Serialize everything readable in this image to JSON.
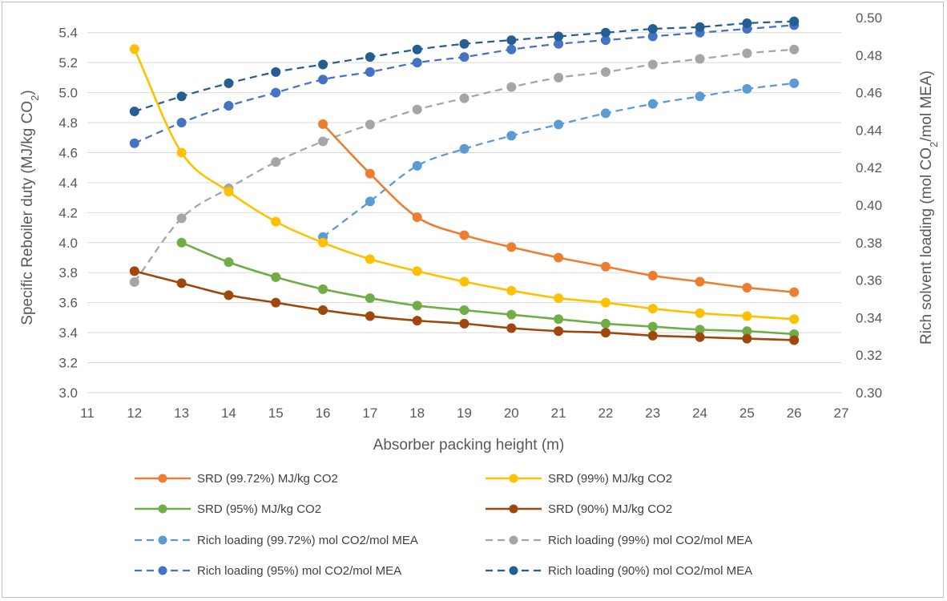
{
  "chart_data": {
    "type": "line",
    "title": "",
    "xlabel": "Absorber packing height (m)",
    "ylabel_left": {
      "text": "Specific Reboiler duty (MJ/kg CO",
      "sub": "2",
      "end": ")"
    },
    "ylabel_right": {
      "text": "Rich solvent loading (mol CO",
      "sub": "2",
      "end": "/mol MEA)"
    },
    "xlim": [
      11,
      27
    ],
    "ylim_left": [
      3.0,
      5.5
    ],
    "ylim_right": [
      0.3,
      0.5
    ],
    "x_ticks": [
      "11",
      "12",
      "13",
      "14",
      "15",
      "16",
      "17",
      "18",
      "19",
      "20",
      "21",
      "22",
      "23",
      "24",
      "25",
      "26",
      "27"
    ],
    "y_left_ticks": [
      "3.0",
      "3.2",
      "3.4",
      "3.6",
      "3.8",
      "4.0",
      "4.2",
      "4.4",
      "4.6",
      "4.8",
      "5.0",
      "5.2",
      "5.4"
    ],
    "y_right_ticks": [
      "0.30",
      "0.32",
      "0.34",
      "0.36",
      "0.38",
      "0.40",
      "0.42",
      "0.44",
      "0.46",
      "0.48",
      "0.50"
    ],
    "grid": "horizontal",
    "legend_position": "bottom",
    "series": [
      {
        "name": "SRD (99.72%) MJ/kg CO2",
        "axis": "left",
        "dashed": false,
        "color": "#ED7D31",
        "x": [
          16,
          17,
          18,
          19,
          20,
          21,
          22,
          23,
          24,
          25,
          26
        ],
        "y": [
          4.79,
          4.46,
          4.17,
          4.05,
          3.97,
          3.9,
          3.84,
          3.78,
          3.74,
          3.7,
          3.67
        ]
      },
      {
        "name": "SRD (99%) MJ/kg CO2",
        "axis": "left",
        "dashed": false,
        "color": "#FFC000",
        "x": [
          12,
          13,
          14,
          15,
          16,
          17,
          18,
          19,
          20,
          21,
          22,
          23,
          24,
          25,
          26
        ],
        "y": [
          5.29,
          4.6,
          4.34,
          4.14,
          4.0,
          3.89,
          3.81,
          3.74,
          3.68,
          3.63,
          3.6,
          3.56,
          3.53,
          3.51,
          3.49
        ]
      },
      {
        "name": "SRD (95%) MJ/kg CO2",
        "axis": "left",
        "dashed": false,
        "color": "#70AD47",
        "x": [
          13,
          14,
          15,
          16,
          17,
          18,
          19,
          20,
          21,
          22,
          23,
          24,
          25,
          26
        ],
        "y": [
          4.0,
          3.87,
          3.77,
          3.69,
          3.63,
          3.58,
          3.55,
          3.52,
          3.49,
          3.46,
          3.44,
          3.42,
          3.41,
          3.39
        ]
      },
      {
        "name": "SRD (90%) MJ/kg CO2",
        "axis": "left",
        "dashed": false,
        "color": "#9E480E",
        "x": [
          12,
          13,
          14,
          15,
          16,
          17,
          18,
          19,
          20,
          21,
          22,
          23,
          24,
          25,
          26
        ],
        "y": [
          3.81,
          3.73,
          3.65,
          3.6,
          3.55,
          3.51,
          3.48,
          3.46,
          3.43,
          3.41,
          3.4,
          3.38,
          3.37,
          3.36,
          3.35
        ]
      },
      {
        "name": "Rich loading (99.72%) mol CO2/mol MEA",
        "axis": "right",
        "dashed": true,
        "color": "#5B9BD5",
        "x": [
          16,
          17,
          18,
          19,
          20,
          21,
          22,
          23,
          24,
          25,
          26
        ],
        "y": [
          0.383,
          0.402,
          0.421,
          0.43,
          0.437,
          0.443,
          0.449,
          0.454,
          0.458,
          0.462,
          0.465
        ]
      },
      {
        "name": "Rich loading (99%) mol CO2/mol MEA",
        "axis": "right",
        "dashed": true,
        "color": "#A5A5A5",
        "x": [
          12,
          13,
          14,
          15,
          16,
          17,
          18,
          19,
          20,
          21,
          22,
          23,
          24,
          25,
          26
        ],
        "y": [
          0.359,
          0.393,
          0.409,
          0.423,
          0.434,
          0.443,
          0.451,
          0.457,
          0.463,
          0.468,
          0.471,
          0.475,
          0.478,
          0.481,
          0.483
        ]
      },
      {
        "name": "Rich loading (95%) mol CO2/mol MEA",
        "axis": "right",
        "dashed": true,
        "color": "#4472C4",
        "x": [
          12,
          13,
          14,
          15,
          16,
          17,
          18,
          19,
          20,
          21,
          22,
          23,
          24,
          25,
          26
        ],
        "y": [
          0.433,
          0.444,
          0.453,
          0.46,
          0.467,
          0.471,
          0.476,
          0.479,
          0.483,
          0.486,
          0.488,
          0.49,
          0.492,
          0.494,
          0.496
        ]
      },
      {
        "name": "Rich loading (90%) mol CO2/mol MEA",
        "axis": "right",
        "dashed": true,
        "color": "#255E91",
        "x": [
          12,
          13,
          14,
          15,
          16,
          17,
          18,
          19,
          20,
          21,
          22,
          23,
          24,
          25,
          26
        ],
        "y": [
          0.45,
          0.458,
          0.465,
          0.471,
          0.475,
          0.479,
          0.483,
          0.486,
          0.488,
          0.49,
          0.492,
          0.494,
          0.495,
          0.497,
          0.498
        ]
      }
    ]
  }
}
